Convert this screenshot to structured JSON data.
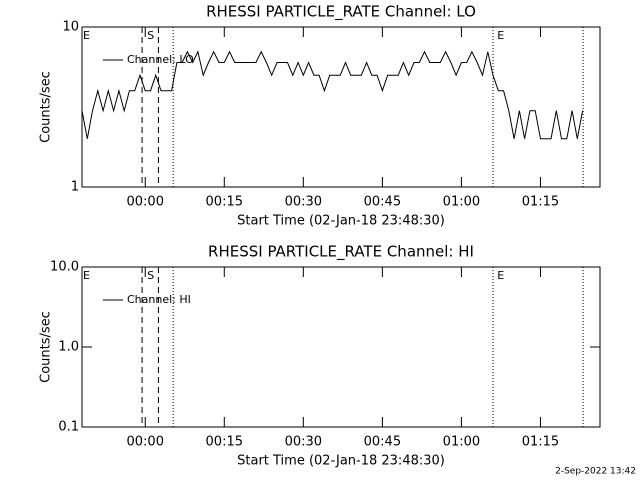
{
  "chart_data": [
    {
      "type": "line",
      "title": "RHESSI PARTICLE_RATE Channel: LO",
      "x_label": "Start Time (02-Jan-18 23:48:30)",
      "y_label": "Counts/sec",
      "ylog": true,
      "ylim": [
        1,
        10
      ],
      "yticks": [
        1,
        10
      ],
      "xlim": [
        -12,
        86.3
      ],
      "xticks": [
        {
          "value": 0,
          "label": "00:00"
        },
        {
          "value": 15,
          "label": "00:15"
        },
        {
          "value": 30,
          "label": "00:30"
        },
        {
          "value": 45,
          "label": "00:45"
        },
        {
          "value": 60,
          "label": "01:00"
        },
        {
          "value": 75,
          "label": "01:15"
        }
      ],
      "markers": [
        {
          "x": -0.6,
          "style": "dashed"
        },
        {
          "x": 2.5,
          "style": "dashed"
        },
        {
          "x": 5.3,
          "style": "dotted"
        },
        {
          "x": 66.0,
          "style": "dotted"
        },
        {
          "x": 83.1,
          "style": "dotted"
        }
      ],
      "flags": [
        {
          "text": "E",
          "x": -12
        },
        {
          "text": "S",
          "x": 0.2
        },
        {
          "text": "E",
          "x": 66.6
        }
      ],
      "legend": "upper left",
      "series": [
        {
          "name": "Channel: LO",
          "color": "#000000",
          "x": [
            -12,
            -11,
            -10,
            -9,
            -8,
            -7,
            -6,
            -5,
            -4,
            -3,
            -2,
            -1,
            0,
            1,
            2,
            3,
            4,
            5,
            6,
            7,
            8,
            9,
            10,
            11,
            12,
            13,
            14,
            15,
            16,
            17,
            18,
            19,
            20,
            21,
            22,
            23,
            24,
            25,
            26,
            27,
            28,
            29,
            30,
            31,
            32,
            33,
            34,
            35,
            36,
            37,
            38,
            39,
            40,
            41,
            42,
            43,
            44,
            45,
            46,
            47,
            48,
            49,
            50,
            51,
            52,
            53,
            54,
            55,
            56,
            57,
            58,
            59,
            60,
            61,
            62,
            63,
            64,
            65,
            66,
            67,
            68,
            69,
            70,
            71,
            72,
            73,
            74,
            75,
            76,
            77,
            78,
            79,
            80,
            81,
            82,
            83
          ],
          "values": [
            3,
            2,
            3,
            4,
            3,
            4,
            3,
            4,
            3,
            4,
            4,
            5,
            4,
            4,
            5,
            4,
            4,
            4,
            6,
            6,
            7,
            6,
            7,
            5,
            6,
            7,
            6,
            6,
            7,
            6,
            6,
            6,
            6,
            6,
            7,
            6,
            5,
            6,
            6,
            6,
            5,
            6,
            5,
            6,
            5,
            5,
            4,
            5,
            5,
            5,
            6,
            5,
            5,
            5,
            6,
            5,
            5,
            4,
            5,
            5,
            5,
            6,
            5,
            6,
            6,
            7,
            6,
            6,
            6,
            7,
            6,
            5,
            6,
            6,
            7,
            6,
            5,
            7,
            5,
            4,
            4,
            3,
            2,
            3,
            2,
            3,
            3,
            2,
            2,
            2,
            3,
            2,
            2,
            3,
            2,
            3
          ]
        }
      ]
    },
    {
      "type": "line",
      "title": "RHESSI PARTICLE_RATE Channel: HI",
      "x_label": "Start Time (02-Jan-18 23:48:30)",
      "y_label": "Counts/sec",
      "ylog": true,
      "ylim": [
        0.1,
        10
      ],
      "yticks": [
        0.1,
        {
          "value": 1,
          "label": "1.0"
        },
        {
          "value": 10,
          "label": "10.0"
        }
      ],
      "xlim": [
        -12,
        86.3
      ],
      "xticks": [
        {
          "value": 0,
          "label": "00:00"
        },
        {
          "value": 15,
          "label": "00:15"
        },
        {
          "value": 30,
          "label": "00:30"
        },
        {
          "value": 45,
          "label": "00:45"
        },
        {
          "value": 60,
          "label": "01:00"
        },
        {
          "value": 75,
          "label": "01:15"
        }
      ],
      "markers": [
        {
          "x": -0.6,
          "style": "dashed"
        },
        {
          "x": 2.5,
          "style": "dashed"
        },
        {
          "x": 5.3,
          "style": "dotted"
        },
        {
          "x": 66.0,
          "style": "dotted"
        },
        {
          "x": 83.1,
          "style": "dotted"
        }
      ],
      "flags": [
        {
          "text": "E",
          "x": -12
        },
        {
          "text": "S",
          "x": 0.2
        },
        {
          "text": "E",
          "x": 66.6
        }
      ],
      "legend": "upper left",
      "series": [
        {
          "name": "Channel: HI",
          "color": "#000000",
          "x": [],
          "values": []
        }
      ]
    }
  ],
  "footer": "2-Sep-2022 13:42"
}
